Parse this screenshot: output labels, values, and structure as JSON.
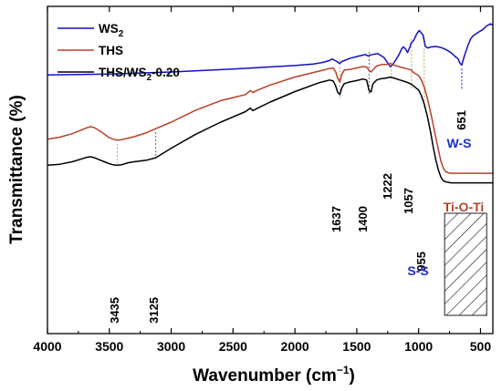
{
  "chart_data": {
    "type": "line",
    "xlabel": "Wavenumber (cm",
    "xlabel_sup": "−1",
    "xlabel_close": ")",
    "ylabel": "Transmittance (%)",
    "xlim": [
      4000,
      400
    ],
    "x_reversed": true,
    "x_ticks": [
      4000,
      3500,
      3000,
      2500,
      2000,
      1500,
      1000,
      500
    ],
    "y_ticks_shown": false,
    "grid": false,
    "legend_position": "top-left",
    "series": [
      {
        "name": "WS",
        "name_sub": "2",
        "name_tail": "",
        "color": "#1010c8",
        "x": [
          4000,
          3500,
          3000,
          2500,
          2000,
          1850,
          1780,
          1720,
          1700,
          1660,
          1640,
          1620,
          1560,
          1480,
          1430,
          1410,
          1390,
          1330,
          1280,
          1250,
          1230,
          1215,
          1195,
          1160,
          1140,
          1125,
          1105,
          1090,
          1070,
          1060,
          1040,
          1015,
          995,
          985,
          965,
          945,
          925,
          900,
          860,
          820,
          780,
          740,
          705,
          680,
          665,
          651,
          645,
          625,
          600,
          580,
          560,
          520,
          480,
          450,
          420,
          400
        ],
        "y": [
          6.1,
          6.2,
          6.4,
          6.7,
          7.05,
          7.2,
          7.35,
          7.55,
          7.7,
          7.45,
          7.25,
          7.45,
          7.75,
          8.0,
          8.15,
          8.0,
          8.1,
          8.25,
          7.85,
          7.3,
          6.95,
          7.05,
          7.4,
          8.1,
          8.65,
          8.9,
          8.7,
          8.35,
          8.9,
          9.3,
          9.55,
          10.2,
          10.55,
          10.4,
          10.1,
          8.95,
          8.8,
          8.9,
          8.95,
          8.85,
          8.65,
          8.35,
          7.95,
          7.7,
          7.25,
          7.1,
          7.4,
          8.2,
          9.1,
          9.7,
          10.0,
          10.35,
          10.65,
          11.0,
          11.2,
          11.1
        ]
      },
      {
        "name": "THS",
        "name_sub": "",
        "name_tail": "",
        "color": "#b8402a",
        "x": [
          4000,
          3900,
          3800,
          3720,
          3680,
          3650,
          3620,
          3580,
          3540,
          3500,
          3470,
          3435,
          3400,
          3350,
          3300,
          3200,
          3125,
          3000,
          2800,
          2600,
          2400,
          2360,
          2340,
          2300,
          2200,
          2000,
          1800,
          1720,
          1690,
          1670,
          1655,
          1637,
          1620,
          1600,
          1560,
          1500,
          1450,
          1420,
          1400,
          1385,
          1370,
          1340,
          1300,
          1260,
          1230,
          1200,
          1150,
          1100,
          1060,
          1040,
          1000,
          980,
          955,
          930,
          900,
          880,
          860,
          840,
          820,
          800,
          780,
          760,
          740,
          700,
          650,
          600,
          550,
          500,
          450,
          400
        ],
        "y": [
          -0.3,
          -0.1,
          0.25,
          0.65,
          0.85,
          0.95,
          0.85,
          0.55,
          0.2,
          -0.15,
          -0.3,
          -0.4,
          -0.35,
          -0.2,
          -0.05,
          0.35,
          0.75,
          1.4,
          2.6,
          3.55,
          4.15,
          4.55,
          4.35,
          4.6,
          5.1,
          5.9,
          6.5,
          6.75,
          6.8,
          6.4,
          5.8,
          5.4,
          6.2,
          6.6,
          6.65,
          6.8,
          6.95,
          6.9,
          6.55,
          6.4,
          6.6,
          7.0,
          7.15,
          7.15,
          7.25,
          7.1,
          6.9,
          6.75,
          6.6,
          6.35,
          6.05,
          5.65,
          4.9,
          3.8,
          2.2,
          1.0,
          -0.2,
          -1.4,
          -2.5,
          -3.2,
          -3.55,
          -3.65,
          -3.7,
          -3.7,
          -3.7,
          -3.7,
          -3.7,
          -3.7,
          -3.7,
          -3.7
        ]
      },
      {
        "name": "THS/WS",
        "name_sub": "2",
        "name_tail": "-0.20",
        "color": "#000000",
        "x": [
          4000,
          3900,
          3800,
          3720,
          3680,
          3650,
          3620,
          3580,
          3540,
          3500,
          3470,
          3435,
          3400,
          3350,
          3300,
          3200,
          3125,
          3000,
          2800,
          2600,
          2400,
          2360,
          2340,
          2300,
          2200,
          2000,
          1800,
          1720,
          1690,
          1670,
          1655,
          1637,
          1620,
          1600,
          1560,
          1500,
          1450,
          1420,
          1400,
          1385,
          1370,
          1340,
          1300,
          1260,
          1230,
          1200,
          1150,
          1100,
          1060,
          1040,
          1000,
          980,
          955,
          930,
          900,
          880,
          860,
          840,
          820,
          800,
          780,
          760,
          740,
          700,
          650,
          600,
          550,
          500,
          450,
          400
        ],
        "y": [
          -2.9,
          -2.8,
          -2.55,
          -2.25,
          -2.1,
          -2.05,
          -2.15,
          -2.35,
          -2.55,
          -2.75,
          -2.85,
          -2.9,
          -2.85,
          -2.65,
          -2.55,
          -2.4,
          -2.15,
          -1.2,
          0.2,
          1.4,
          2.45,
          2.8,
          2.55,
          2.8,
          3.4,
          4.45,
          5.35,
          5.6,
          5.5,
          5.0,
          4.4,
          4.15,
          4.85,
          5.25,
          5.4,
          5.55,
          5.7,
          5.6,
          4.55,
          4.4,
          5.2,
          5.6,
          5.75,
          5.8,
          5.9,
          5.8,
          5.6,
          5.4,
          5.2,
          5.0,
          4.6,
          4.1,
          3.2,
          2.0,
          0.2,
          -1.2,
          -2.4,
          -3.4,
          -4.1,
          -4.45,
          -4.55,
          -4.6,
          -4.65,
          -4.65,
          -4.65,
          -4.65,
          -4.65,
          -4.65,
          -4.65,
          -4.65
        ]
      }
    ],
    "peak_labels": [
      {
        "text": "3435",
        "x": 3435,
        "color": "#000000",
        "guide_color": "#c8a040",
        "guide_from": "THS",
        "guide_to": "THS/WS2-0.20"
      },
      {
        "text": "3125",
        "x": 3125,
        "color": "#000000",
        "guide_color": "#606080",
        "guide_from": "THS",
        "guide_to": "THS/WS2-0.20"
      },
      {
        "text": "1637",
        "x": 1637,
        "color": "#000000",
        "guide_color": "#c8a040",
        "guide_from": "WS2",
        "guide_to": "THS/WS2-0.20"
      },
      {
        "text": "1400",
        "x": 1400,
        "color": "#000000",
        "guide_color": "#606080",
        "guide_from": "WS2",
        "guide_to": "THS/WS2-0.20"
      },
      {
        "text": "1222",
        "x": 1222,
        "color": "#000000",
        "guide_color": "#c8a040",
        "guide_from": "WS2",
        "guide_to": "THS/WS2-0.20"
      },
      {
        "text": "1057",
        "x": 1057,
        "color": "#000000",
        "guide_color": "#c8a040",
        "guide_from": "WS2",
        "guide_to": "THS/WS2-0.20"
      },
      {
        "text": "955",
        "x": 955,
        "color": "#000000",
        "guide_color": "#c8a040",
        "guide_from": "WS2",
        "guide_to": "THS/WS2-0.20"
      },
      {
        "text": "651",
        "x": 651,
        "color": "#000000",
        "guide_color": "#1010c8",
        "guide_from": "WS2",
        "guide_to": "WS2"
      }
    ],
    "assignments": [
      {
        "text": "W-S",
        "color": "#1a2ec8"
      },
      {
        "text": "S-S",
        "color": "#1a2ec8"
      },
      {
        "text": "Ti-O-Ti",
        "color": "#b8402a"
      }
    ],
    "hatched_region": {
      "x_range": [
        790,
        450
      ]
    }
  }
}
